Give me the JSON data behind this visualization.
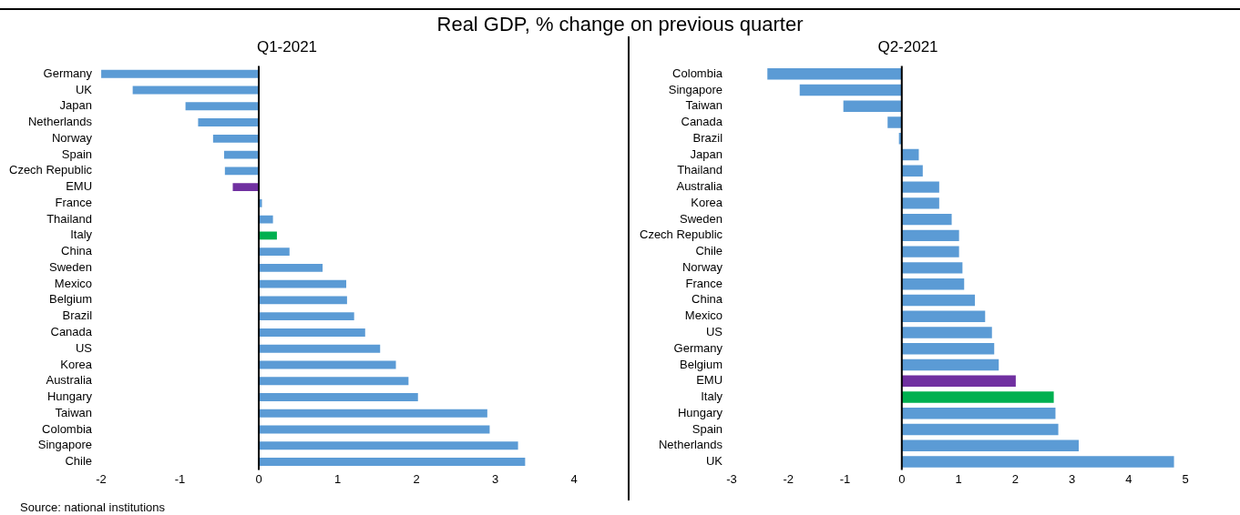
{
  "chart_data": [
    {
      "type": "bar",
      "orientation": "horizontal",
      "title": "Real GDP, % change on previous quarter",
      "subtitle": "Q1-2021",
      "categories": [
        "Germany",
        "UK",
        "Japan",
        "Netherlands",
        "Norway",
        "Spain",
        "Czech Republic",
        "EMU",
        "France",
        "Thailand",
        "Italy",
        "China",
        "Sweden",
        "Mexico",
        "Belgium",
        "Brazil",
        "Canada",
        "US",
        "Korea",
        "Australia",
        "Hungary",
        "Taiwan",
        "Colombia",
        "Singapore",
        "Chile"
      ],
      "values": [
        -2.0,
        -1.6,
        -0.93,
        -0.77,
        -0.58,
        -0.44,
        -0.43,
        -0.33,
        0.04,
        0.18,
        0.23,
        0.39,
        0.81,
        1.11,
        1.12,
        1.21,
        1.35,
        1.54,
        1.74,
        1.9,
        2.02,
        2.9,
        2.93,
        3.29,
        3.38
      ],
      "colors": [
        "#5b9bd5",
        "#5b9bd5",
        "#5b9bd5",
        "#5b9bd5",
        "#5b9bd5",
        "#5b9bd5",
        "#5b9bd5",
        "#7030a0",
        "#5b9bd5",
        "#5b9bd5",
        "#00b050",
        "#5b9bd5",
        "#5b9bd5",
        "#5b9bd5",
        "#5b9bd5",
        "#5b9bd5",
        "#5b9bd5",
        "#5b9bd5",
        "#5b9bd5",
        "#5b9bd5",
        "#5b9bd5",
        "#5b9bd5",
        "#5b9bd5",
        "#5b9bd5",
        "#5b9bd5"
      ],
      "xlim": [
        -2,
        4
      ],
      "xticks": [
        -2,
        -1,
        0,
        1,
        2,
        3,
        4
      ],
      "grid": false,
      "legend": false,
      "ref_lines": [
        {
          "axis": "x",
          "value": 0,
          "color": "#000000"
        }
      ],
      "annotations": [
        "Source: national institutions"
      ]
    },
    {
      "type": "bar",
      "orientation": "horizontal",
      "subtitle": "Q2-2021",
      "categories": [
        "Colombia",
        "Singapore",
        "Taiwan",
        "Canada",
        "Brazil",
        "Japan",
        "Thailand",
        "Australia",
        "Korea",
        "Sweden",
        "Czech Republic",
        "Chile",
        "Norway",
        "France",
        "China",
        "Mexico",
        "US",
        "Germany",
        "Belgium",
        "EMU",
        "Italy",
        "Hungary",
        "Spain",
        "Netherlands",
        "UK"
      ],
      "values": [
        -2.37,
        -1.8,
        -1.03,
        -0.25,
        -0.05,
        0.3,
        0.37,
        0.66,
        0.66,
        0.88,
        1.01,
        1.01,
        1.07,
        1.1,
        1.29,
        1.47,
        1.59,
        1.63,
        1.71,
        2.01,
        2.68,
        2.71,
        2.76,
        3.12,
        4.8
      ],
      "colors": [
        "#5b9bd5",
        "#5b9bd5",
        "#5b9bd5",
        "#5b9bd5",
        "#5b9bd5",
        "#5b9bd5",
        "#5b9bd5",
        "#5b9bd5",
        "#5b9bd5",
        "#5b9bd5",
        "#5b9bd5",
        "#5b9bd5",
        "#5b9bd5",
        "#5b9bd5",
        "#5b9bd5",
        "#5b9bd5",
        "#5b9bd5",
        "#5b9bd5",
        "#5b9bd5",
        "#7030a0",
        "#00b050",
        "#5b9bd5",
        "#5b9bd5",
        "#5b9bd5",
        "#5b9bd5"
      ],
      "xlim": [
        -3,
        5
      ],
      "xticks": [
        -3,
        -2,
        -1,
        0,
        1,
        2,
        3,
        4,
        5
      ],
      "grid": false,
      "legend": false,
      "ref_lines": [
        {
          "axis": "x",
          "value": 0,
          "color": "#000000"
        }
      ]
    }
  ]
}
